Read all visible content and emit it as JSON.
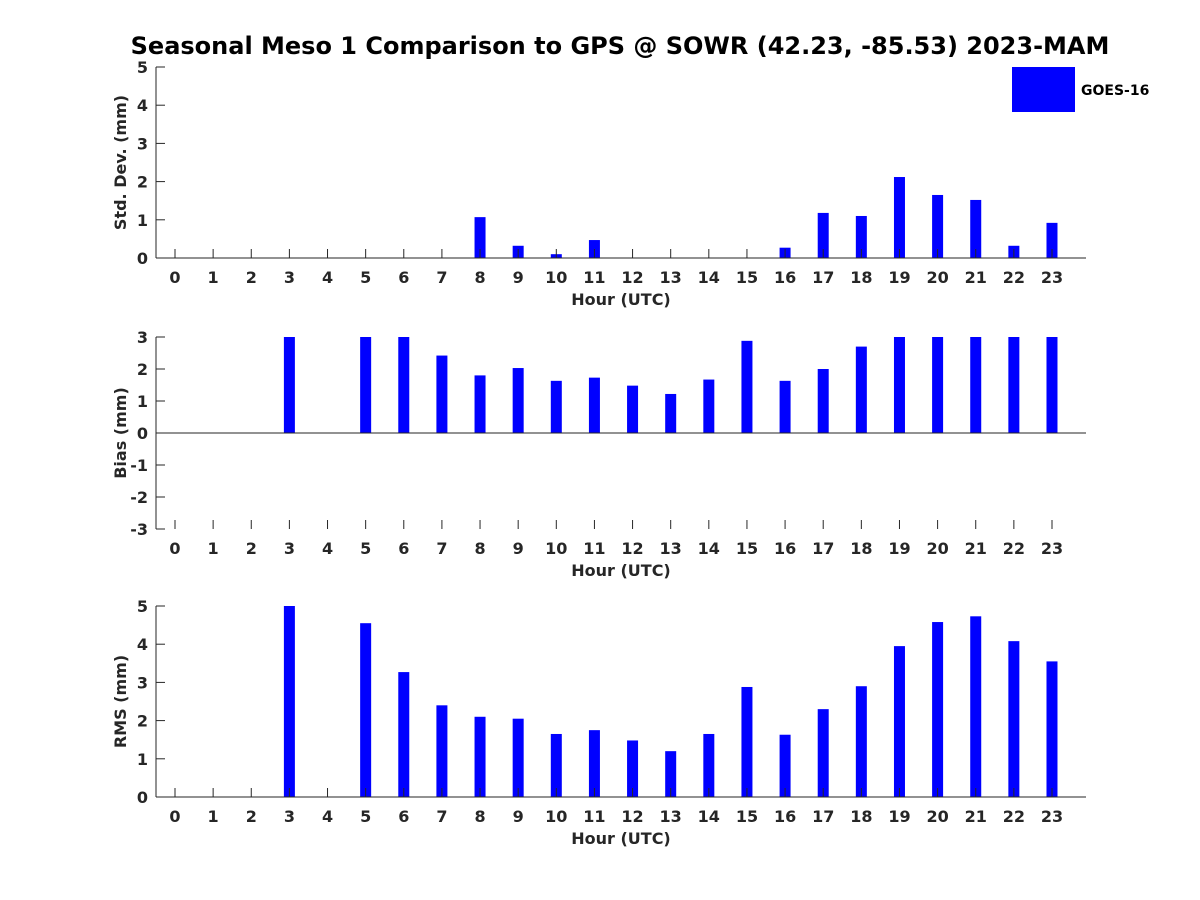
{
  "colors": {
    "bar": "#0000ff",
    "axis": "#262626",
    "background": "#ffffff"
  },
  "chart_data": {
    "type": "bar",
    "title": "Seasonal Meso 1 Comparison to GPS @ SOWR (42.23, -85.53) 2023-MAM",
    "legend": {
      "entries": [
        "GOES-16"
      ],
      "placement": "top-right"
    },
    "categories": [
      "0",
      "1",
      "2",
      "3",
      "4",
      "5",
      "6",
      "7",
      "8",
      "9",
      "10",
      "11",
      "12",
      "13",
      "14",
      "15",
      "16",
      "17",
      "18",
      "19",
      "20",
      "21",
      "22",
      "23"
    ],
    "panels": [
      {
        "id": "std",
        "ylabel": "Std. Dev. (mm)",
        "xlabel": "Hour (UTC)",
        "ylim": [
          0,
          5
        ],
        "yticks": [
          0,
          1,
          2,
          3,
          4,
          5
        ],
        "series": [
          {
            "name": "GOES-16",
            "values": [
              0,
              0,
              0,
              0,
              0,
              0,
              0,
              0,
              1.07,
              0.32,
              0.1,
              0.47,
              0,
              0,
              0,
              0,
              0.27,
              1.18,
              1.1,
              2.12,
              1.65,
              1.52,
              0.32,
              0.92
            ]
          }
        ]
      },
      {
        "id": "bias",
        "ylabel": "Bias (mm)",
        "xlabel": "Hour (UTC)",
        "ylim": [
          -3,
          3
        ],
        "yticks": [
          -3,
          -2,
          -1,
          0,
          1,
          2,
          3
        ],
        "series": [
          {
            "name": "GOES-16",
            "values": [
              0,
              0,
              0,
              3,
              0,
              3,
              3,
              2.42,
              1.8,
              2.03,
              1.63,
              1.73,
              1.48,
              1.22,
              1.67,
              2.88,
              1.63,
              2.0,
              2.7,
              3,
              3,
              3,
              3,
              3
            ]
          }
        ]
      },
      {
        "id": "rms",
        "ylabel": "RMS (mm)",
        "xlabel": "Hour (UTC)",
        "ylim": [
          0,
          5
        ],
        "yticks": [
          0,
          1,
          2,
          3,
          4,
          5
        ],
        "series": [
          {
            "name": "GOES-16",
            "values": [
              0,
              0,
              0,
              5,
              0,
              4.55,
              3.27,
              2.4,
              2.1,
              2.05,
              1.65,
              1.75,
              1.48,
              1.2,
              1.65,
              2.88,
              1.63,
              2.3,
              2.9,
              3.95,
              4.58,
              4.73,
              4.08,
              3.55
            ]
          }
        ]
      }
    ]
  }
}
